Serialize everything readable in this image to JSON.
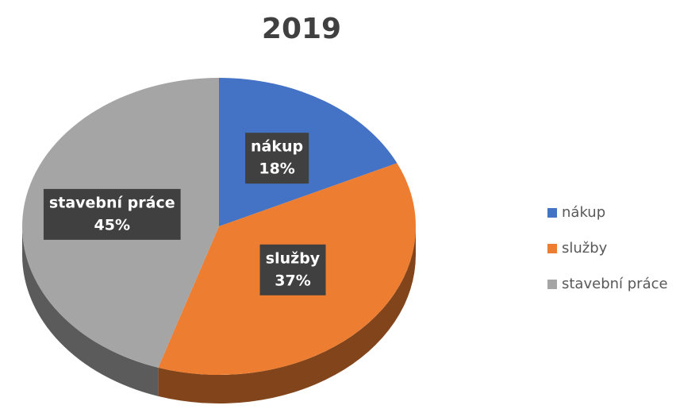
{
  "chart_data": {
    "type": "pie",
    "title": "2019",
    "categories": [
      "nákup",
      "služby",
      "stavební práce"
    ],
    "values": [
      18,
      37,
      45
    ],
    "value_labels": [
      "18%",
      "37%",
      "45%"
    ],
    "colors": [
      "#4472c4",
      "#ed7d31",
      "#a5a5a5"
    ],
    "legend": "right"
  }
}
